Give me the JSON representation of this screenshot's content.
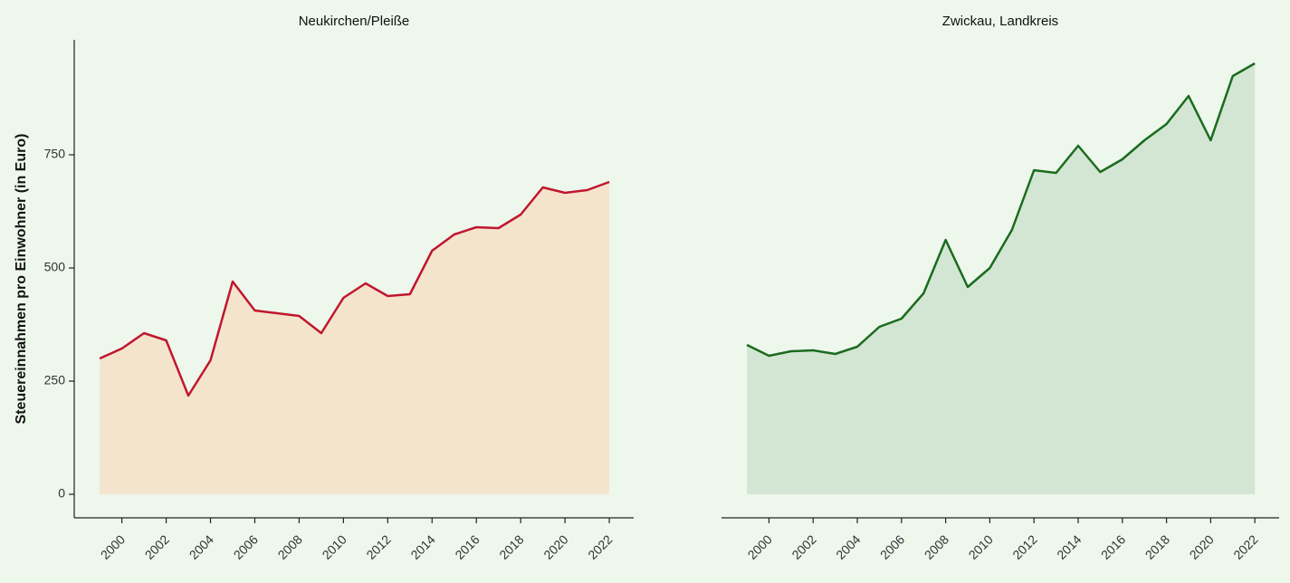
{
  "chart_data": [
    {
      "type": "area",
      "title": "Neukirchen/Pleiße",
      "ylabel": "Steuereinnahmen pro Einwohner (in Euro)",
      "x": [
        1999,
        2000,
        2001,
        2002,
        2003,
        2004,
        2005,
        2006,
        2007,
        2008,
        2009,
        2010,
        2011,
        2012,
        2013,
        2014,
        2015,
        2016,
        2017,
        2018,
        2019,
        2020,
        2021,
        2022
      ],
      "values": [
        300,
        322,
        356,
        340,
        218,
        296,
        470,
        406,
        400,
        394,
        356,
        434,
        466,
        438,
        442,
        538,
        574,
        590,
        588,
        618,
        678,
        666,
        672,
        690
      ],
      "color": "#c0172f",
      "fill": "#f5e4cd",
      "xlim": [
        1997.85,
        2023.1
      ],
      "xticks": [
        2000,
        2002,
        2004,
        2006,
        2008,
        2010,
        2012,
        2014,
        2016,
        2018,
        2020,
        2022
      ],
      "ylim": [
        -52,
        1004
      ],
      "yticks": [
        0,
        250,
        500,
        750
      ]
    },
    {
      "type": "area",
      "title": "Zwickau, Landkreis",
      "x": [
        1999,
        2000,
        2001,
        2002,
        2003,
        2004,
        2005,
        2006,
        2007,
        2008,
        2009,
        2010,
        2011,
        2012,
        2013,
        2014,
        2015,
        2016,
        2017,
        2018,
        2019,
        2020,
        2021,
        2022
      ],
      "values": [
        330,
        306,
        316,
        318,
        310,
        326,
        370,
        388,
        444,
        562,
        458,
        500,
        584,
        716,
        710,
        770,
        712,
        740,
        782,
        818,
        880,
        782,
        924,
        952
      ],
      "color": "#1b6b1e",
      "fill": "#d3e6d3",
      "xlim": [
        1997.85,
        2023.1
      ],
      "xticks": [
        2000,
        2002,
        2004,
        2006,
        2008,
        2010,
        2012,
        2014,
        2016,
        2018,
        2020,
        2022
      ],
      "ylim": [
        -52,
        1004
      ]
    }
  ]
}
